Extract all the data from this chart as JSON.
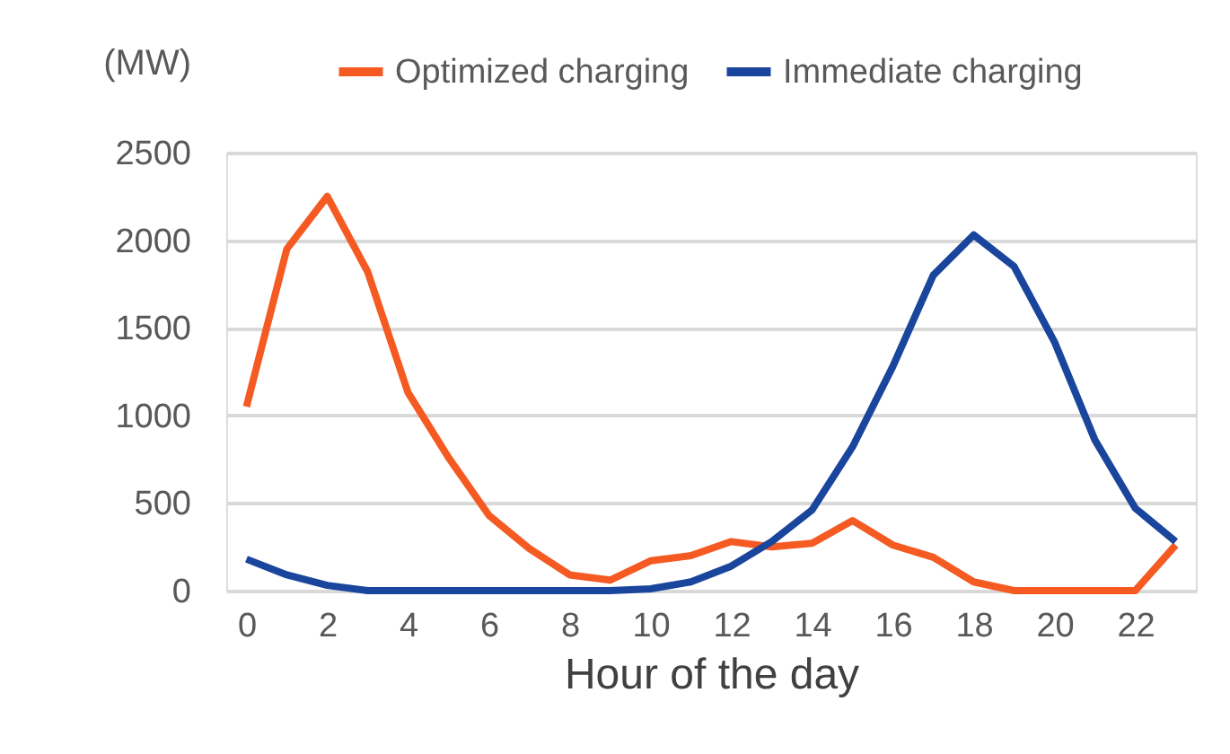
{
  "chart_data": {
    "type": "line",
    "ylabel": "(MW)",
    "xlabel": "Hour of the day",
    "x": [
      0,
      1,
      2,
      3,
      4,
      5,
      6,
      7,
      8,
      9,
      10,
      11,
      12,
      13,
      14,
      15,
      16,
      17,
      18,
      19,
      20,
      21,
      22,
      23
    ],
    "series": [
      {
        "name": "Optimized charging",
        "color": "#f55a22",
        "values": [
          1050,
          1950,
          2250,
          1820,
          1130,
          760,
          430,
          240,
          90,
          60,
          170,
          200,
          280,
          250,
          270,
          400,
          260,
          190,
          50,
          0,
          0,
          0,
          0,
          260
        ]
      },
      {
        "name": "Immediate charging",
        "color": "#1a459c",
        "values": [
          180,
          90,
          30,
          0,
          0,
          0,
          0,
          0,
          0,
          0,
          10,
          50,
          140,
          280,
          460,
          820,
          1280,
          1800,
          2030,
          1850,
          1420,
          860,
          470,
          280
        ]
      }
    ],
    "xlim": [
      -0.5,
      23.5
    ],
    "xticks": [
      0,
      2,
      4,
      6,
      8,
      10,
      12,
      14,
      16,
      18,
      20,
      22
    ],
    "ylim": [
      0,
      2500
    ],
    "yticks": [
      0,
      500,
      1000,
      1500,
      2000,
      2500
    ],
    "grid": "y",
    "legend": "top",
    "marker": "none",
    "line_style": "solid"
  }
}
